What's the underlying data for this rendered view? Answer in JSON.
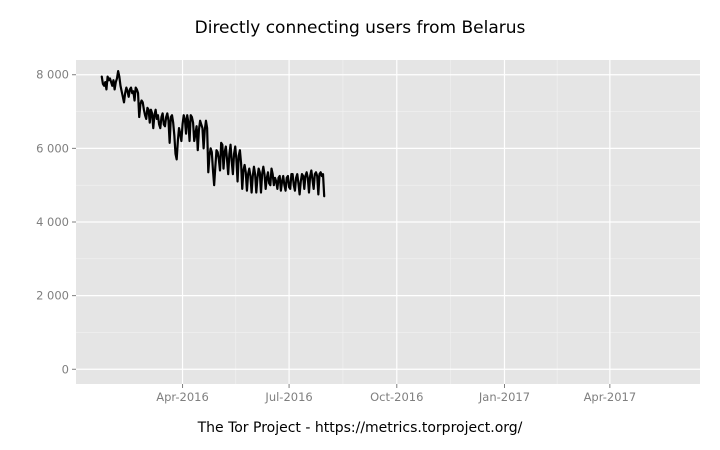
{
  "chart_data": {
    "type": "line",
    "title": "Directly connecting users from Belarus",
    "caption": "The Tor Project - https://metrics.torproject.org/",
    "xlabel": "",
    "ylabel": "",
    "x_range": [
      "2016-01-01",
      "2017-06-17"
    ],
    "ylim": [
      -400,
      8400
    ],
    "grid": true,
    "legend": "none",
    "colors": {
      "panel": "#e5e5e5",
      "grid_major": "#ffffff",
      "grid_minor": "#f2f2f2",
      "line": "#000000",
      "tick_text": "#7f7f7f"
    },
    "y_ticks": [
      0,
      2000,
      4000,
      6000,
      8000
    ],
    "y_tick_labels": [
      "0",
      "2 000",
      "4 000",
      "6 000",
      "8 000"
    ],
    "x_ticks": [
      "2016-04-01",
      "2016-07-01",
      "2016-10-01",
      "2017-01-01",
      "2017-04-01"
    ],
    "x_tick_labels": [
      "Apr-2016",
      "Jul-2016",
      "Oct-2016",
      "Jan-2017",
      "Apr-2017"
    ],
    "series": [
      {
        "points": [
          [
            "2016-01-23",
            7950
          ],
          [
            "2016-01-24",
            7750
          ],
          [
            "2016-01-25",
            7700
          ],
          [
            "2016-01-26",
            7800
          ],
          [
            "2016-01-27",
            7600
          ],
          [
            "2016-01-28",
            7950
          ],
          [
            "2016-01-29",
            7850
          ],
          [
            "2016-01-30",
            7900
          ],
          [
            "2016-01-31",
            7800
          ],
          [
            "2016-02-01",
            7700
          ],
          [
            "2016-02-02",
            7850
          ],
          [
            "2016-02-03",
            7600
          ],
          [
            "2016-02-04",
            7800
          ],
          [
            "2016-02-05",
            7900
          ],
          [
            "2016-02-06",
            8100
          ],
          [
            "2016-02-07",
            7950
          ],
          [
            "2016-02-08",
            7700
          ],
          [
            "2016-02-09",
            7550
          ],
          [
            "2016-02-10",
            7400
          ],
          [
            "2016-02-11",
            7250
          ],
          [
            "2016-02-12",
            7500
          ],
          [
            "2016-02-13",
            7650
          ],
          [
            "2016-02-14",
            7550
          ],
          [
            "2016-02-15",
            7400
          ],
          [
            "2016-02-16",
            7600
          ],
          [
            "2016-02-17",
            7650
          ],
          [
            "2016-02-18",
            7500
          ],
          [
            "2016-02-19",
            7550
          ],
          [
            "2016-02-20",
            7300
          ],
          [
            "2016-02-21",
            7650
          ],
          [
            "2016-02-22",
            7600
          ],
          [
            "2016-02-23",
            7500
          ],
          [
            "2016-02-24",
            6850
          ],
          [
            "2016-02-25",
            7200
          ],
          [
            "2016-02-26",
            7300
          ],
          [
            "2016-02-27",
            7250
          ],
          [
            "2016-02-28",
            7050
          ],
          [
            "2016-02-29",
            6900
          ],
          [
            "2016-03-01",
            6800
          ],
          [
            "2016-03-02",
            7100
          ],
          [
            "2016-03-03",
            7050
          ],
          [
            "2016-03-04",
            6700
          ],
          [
            "2016-03-05",
            7050
          ],
          [
            "2016-03-06",
            6950
          ],
          [
            "2016-03-07",
            6550
          ],
          [
            "2016-03-08",
            6900
          ],
          [
            "2016-03-09",
            7050
          ],
          [
            "2016-03-10",
            6800
          ],
          [
            "2016-03-11",
            6900
          ],
          [
            "2016-03-12",
            6650
          ],
          [
            "2016-03-13",
            6550
          ],
          [
            "2016-03-14",
            6850
          ],
          [
            "2016-03-15",
            6950
          ],
          [
            "2016-03-16",
            6650
          ],
          [
            "2016-03-17",
            6600
          ],
          [
            "2016-03-18",
            6850
          ],
          [
            "2016-03-19",
            6950
          ],
          [
            "2016-03-20",
            6750
          ],
          [
            "2016-03-21",
            6150
          ],
          [
            "2016-03-22",
            6850
          ],
          [
            "2016-03-23",
            6900
          ],
          [
            "2016-03-24",
            6700
          ],
          [
            "2016-03-25",
            6350
          ],
          [
            "2016-03-26",
            5850
          ],
          [
            "2016-03-27",
            5700
          ],
          [
            "2016-03-28",
            6200
          ],
          [
            "2016-03-29",
            6550
          ],
          [
            "2016-03-30",
            6400
          ],
          [
            "2016-03-31",
            6200
          ],
          [
            "2016-04-01",
            6650
          ],
          [
            "2016-04-02",
            6900
          ],
          [
            "2016-04-03",
            6800
          ],
          [
            "2016-04-04",
            6400
          ],
          [
            "2016-04-05",
            6900
          ],
          [
            "2016-04-06",
            6700
          ],
          [
            "2016-04-07",
            6200
          ],
          [
            "2016-04-08",
            6900
          ],
          [
            "2016-04-09",
            6850
          ],
          [
            "2016-04-10",
            6700
          ],
          [
            "2016-04-11",
            6200
          ],
          [
            "2016-04-12",
            6400
          ],
          [
            "2016-04-13",
            6600
          ],
          [
            "2016-04-14",
            5950
          ],
          [
            "2016-04-15",
            6500
          ],
          [
            "2016-04-16",
            6750
          ],
          [
            "2016-04-17",
            6650
          ],
          [
            "2016-04-18",
            6550
          ],
          [
            "2016-04-19",
            6000
          ],
          [
            "2016-04-20",
            6500
          ],
          [
            "2016-04-21",
            6750
          ],
          [
            "2016-04-22",
            6550
          ],
          [
            "2016-04-23",
            5350
          ],
          [
            "2016-04-24",
            5800
          ],
          [
            "2016-04-25",
            6000
          ],
          [
            "2016-04-26",
            5900
          ],
          [
            "2016-04-27",
            5400
          ],
          [
            "2016-04-28",
            5000
          ],
          [
            "2016-04-29",
            5500
          ],
          [
            "2016-04-30",
            5950
          ],
          [
            "2016-05-01",
            5900
          ],
          [
            "2016-05-02",
            5700
          ],
          [
            "2016-05-03",
            5400
          ],
          [
            "2016-05-04",
            6150
          ],
          [
            "2016-05-05",
            6100
          ],
          [
            "2016-05-06",
            5450
          ],
          [
            "2016-05-07",
            5900
          ],
          [
            "2016-05-08",
            6050
          ],
          [
            "2016-05-09",
            5700
          ],
          [
            "2016-05-10",
            5300
          ],
          [
            "2016-05-11",
            5850
          ],
          [
            "2016-05-12",
            6100
          ],
          [
            "2016-05-13",
            5650
          ],
          [
            "2016-05-14",
            5300
          ],
          [
            "2016-05-15",
            5850
          ],
          [
            "2016-05-16",
            6050
          ],
          [
            "2016-05-17",
            5700
          ],
          [
            "2016-05-18",
            5100
          ],
          [
            "2016-05-19",
            5800
          ],
          [
            "2016-05-20",
            5950
          ],
          [
            "2016-05-21",
            5600
          ],
          [
            "2016-05-22",
            4900
          ],
          [
            "2016-05-23",
            5400
          ],
          [
            "2016-05-24",
            5550
          ],
          [
            "2016-05-25",
            5350
          ],
          [
            "2016-05-26",
            4850
          ],
          [
            "2016-05-27",
            5300
          ],
          [
            "2016-05-28",
            5450
          ],
          [
            "2016-05-29",
            5250
          ],
          [
            "2016-05-30",
            4800
          ],
          [
            "2016-05-31",
            5250
          ],
          [
            "2016-06-01",
            5500
          ],
          [
            "2016-06-02",
            5300
          ],
          [
            "2016-06-03",
            4800
          ],
          [
            "2016-06-04",
            5200
          ],
          [
            "2016-06-05",
            5450
          ],
          [
            "2016-06-06",
            5350
          ],
          [
            "2016-06-07",
            4800
          ],
          [
            "2016-06-08",
            5300
          ],
          [
            "2016-06-09",
            5500
          ],
          [
            "2016-06-10",
            5300
          ],
          [
            "2016-06-11",
            4900
          ],
          [
            "2016-06-12",
            5200
          ],
          [
            "2016-06-13",
            5350
          ],
          [
            "2016-06-14",
            5050
          ],
          [
            "2016-06-15",
            5000
          ],
          [
            "2016-06-16",
            5450
          ],
          [
            "2016-06-17",
            5300
          ],
          [
            "2016-06-18",
            5000
          ],
          [
            "2016-06-19",
            5200
          ],
          [
            "2016-06-20",
            5100
          ],
          [
            "2016-06-21",
            4900
          ],
          [
            "2016-06-22",
            5200
          ],
          [
            "2016-06-23",
            5250
          ],
          [
            "2016-06-24",
            4850
          ],
          [
            "2016-06-25",
            5100
          ],
          [
            "2016-06-26",
            5250
          ],
          [
            "2016-06-27",
            5000
          ],
          [
            "2016-06-28",
            4850
          ],
          [
            "2016-06-29",
            5200
          ],
          [
            "2016-06-30",
            5250
          ],
          [
            "2016-07-01",
            4950
          ],
          [
            "2016-07-02",
            4900
          ],
          [
            "2016-07-03",
            5300
          ],
          [
            "2016-07-04",
            5300
          ],
          [
            "2016-07-05",
            5000
          ],
          [
            "2016-07-06",
            4850
          ],
          [
            "2016-07-07",
            5200
          ],
          [
            "2016-07-08",
            5300
          ],
          [
            "2016-07-09",
            5050
          ],
          [
            "2016-07-10",
            4750
          ],
          [
            "2016-07-11",
            5100
          ],
          [
            "2016-07-12",
            5300
          ],
          [
            "2016-07-13",
            5250
          ],
          [
            "2016-07-14",
            4900
          ],
          [
            "2016-07-15",
            5250
          ],
          [
            "2016-07-16",
            5350
          ],
          [
            "2016-07-17",
            5200
          ],
          [
            "2016-07-18",
            4800
          ],
          [
            "2016-07-19",
            5250
          ],
          [
            "2016-07-20",
            5400
          ],
          [
            "2016-07-21",
            5150
          ],
          [
            "2016-07-22",
            4900
          ],
          [
            "2016-07-23",
            5300
          ],
          [
            "2016-07-24",
            5350
          ],
          [
            "2016-07-25",
            5250
          ],
          [
            "2016-07-26",
            4750
          ],
          [
            "2016-07-27",
            5300
          ],
          [
            "2016-07-28",
            5350
          ],
          [
            "2016-07-29",
            5250
          ],
          [
            "2016-07-30",
            5300
          ],
          [
            "2016-07-31",
            4700
          ]
        ]
      }
    ]
  }
}
